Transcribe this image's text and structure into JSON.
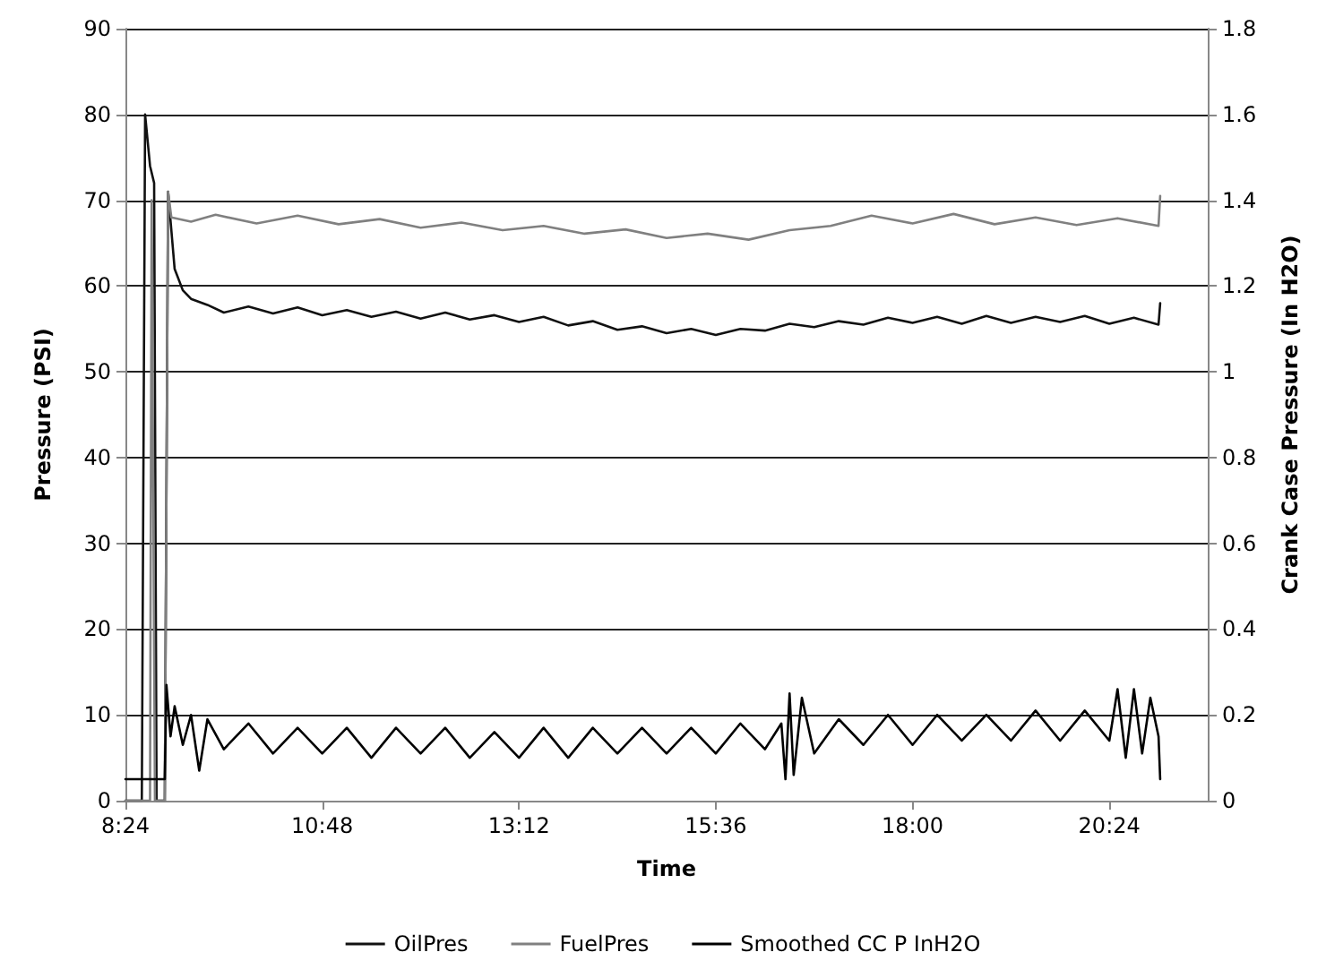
{
  "chart_data": {
    "type": "line",
    "xlabel": "Time",
    "ylabel": "Pressure (PSI)",
    "y2label": "Crank Case Pressure (In H2O)",
    "xlim": [
      8.4,
      21.6
    ],
    "xticks": [
      {
        "value": 8.4,
        "label": "8:24"
      },
      {
        "value": 10.8,
        "label": "10:48"
      },
      {
        "value": 13.2,
        "label": "13:12"
      },
      {
        "value": 15.6,
        "label": "15:36"
      },
      {
        "value": 18.0,
        "label": "18:00"
      },
      {
        "value": 20.4,
        "label": "20:24"
      }
    ],
    "ylim": [
      0,
      90
    ],
    "yticks": [
      0,
      10,
      20,
      30,
      40,
      50,
      60,
      70,
      80,
      90
    ],
    "y2lim": [
      0,
      1.8
    ],
    "y2ticks": [
      0,
      0.2,
      0.4,
      0.6,
      0.8,
      1,
      1.2,
      1.4,
      1.6,
      1.8
    ],
    "grid": "y",
    "legend": "bottom",
    "marker": "none",
    "line_style": "solid",
    "series": [
      {
        "name": "OilPres",
        "color": "#111111",
        "x": [
          8.4,
          8.6,
          8.64,
          8.7,
          8.75,
          8.78,
          8.88,
          8.92,
          9.0,
          9.1,
          9.2,
          9.4,
          9.6,
          9.9,
          10.2,
          10.5,
          10.8,
          11.1,
          11.4,
          11.7,
          12.0,
          12.3,
          12.6,
          12.9,
          13.2,
          13.5,
          13.8,
          14.1,
          14.4,
          14.7,
          15.0,
          15.3,
          15.6,
          15.9,
          16.2,
          16.5,
          16.8,
          17.1,
          17.4,
          17.7,
          18.0,
          18.3,
          18.6,
          18.9,
          19.2,
          19.5,
          19.8,
          20.1,
          20.4,
          20.7,
          21.0,
          21.02
        ],
        "values": [
          0,
          0,
          80,
          74,
          72,
          0,
          0,
          71,
          62,
          59.5,
          58.5,
          57.8,
          56.9,
          57.6,
          56.8,
          57.5,
          56.6,
          57.2,
          56.4,
          57.0,
          56.2,
          56.9,
          56.1,
          56.6,
          55.8,
          56.4,
          55.4,
          55.9,
          54.9,
          55.3,
          54.5,
          55.0,
          54.3,
          55.0,
          54.8,
          55.6,
          55.2,
          55.9,
          55.5,
          56.3,
          55.7,
          56.4,
          55.6,
          56.5,
          55.7,
          56.4,
          55.8,
          56.5,
          55.6,
          56.3,
          55.5,
          58
        ]
      },
      {
        "name": "FuelPres",
        "color": "#808080",
        "x": [
          8.4,
          8.7,
          8.72,
          8.76,
          8.88,
          8.92,
          8.96,
          9.2,
          9.5,
          10.0,
          10.5,
          11.0,
          11.5,
          12.0,
          12.5,
          13.0,
          13.5,
          14.0,
          14.5,
          15.0,
          15.5,
          16.0,
          16.5,
          17.0,
          17.5,
          18.0,
          18.5,
          19.0,
          19.5,
          20.0,
          20.5,
          21.0,
          21.02
        ],
        "values": [
          0,
          0,
          70,
          0,
          0,
          71,
          68,
          67.5,
          68.3,
          67.3,
          68.2,
          67.2,
          67.8,
          66.8,
          67.4,
          66.5,
          67.0,
          66.1,
          66.6,
          65.6,
          66.1,
          65.4,
          66.5,
          67.0,
          68.2,
          67.3,
          68.4,
          67.2,
          68.0,
          67.1,
          67.9,
          67.0,
          70.5
        ]
      },
      {
        "name": "Smoothed CC P InH2O",
        "color": "#000000",
        "axis": "y2",
        "x": [
          8.4,
          8.88,
          8.9,
          8.95,
          9.0,
          9.1,
          9.2,
          9.3,
          9.4,
          9.6,
          9.9,
          10.2,
          10.5,
          10.8,
          11.1,
          11.4,
          11.7,
          12.0,
          12.3,
          12.6,
          12.9,
          13.2,
          13.5,
          13.8,
          14.1,
          14.4,
          14.7,
          15.0,
          15.3,
          15.6,
          15.9,
          16.2,
          16.4,
          16.45,
          16.5,
          16.55,
          16.65,
          16.8,
          17.1,
          17.4,
          17.7,
          18.0,
          18.3,
          18.6,
          18.9,
          19.2,
          19.5,
          19.8,
          20.1,
          20.4,
          20.5,
          20.6,
          20.7,
          20.8,
          20.9,
          21.0,
          21.02
        ],
        "values": [
          0.05,
          0.05,
          0.27,
          0.15,
          0.22,
          0.13,
          0.2,
          0.07,
          0.19,
          0.12,
          0.18,
          0.11,
          0.17,
          0.11,
          0.17,
          0.1,
          0.17,
          0.11,
          0.17,
          0.1,
          0.16,
          0.1,
          0.17,
          0.1,
          0.17,
          0.11,
          0.17,
          0.11,
          0.17,
          0.11,
          0.18,
          0.12,
          0.18,
          0.05,
          0.25,
          0.06,
          0.24,
          0.11,
          0.19,
          0.13,
          0.2,
          0.13,
          0.2,
          0.14,
          0.2,
          0.14,
          0.21,
          0.14,
          0.21,
          0.14,
          0.26,
          0.1,
          0.26,
          0.11,
          0.24,
          0.15,
          0.05
        ]
      }
    ]
  }
}
